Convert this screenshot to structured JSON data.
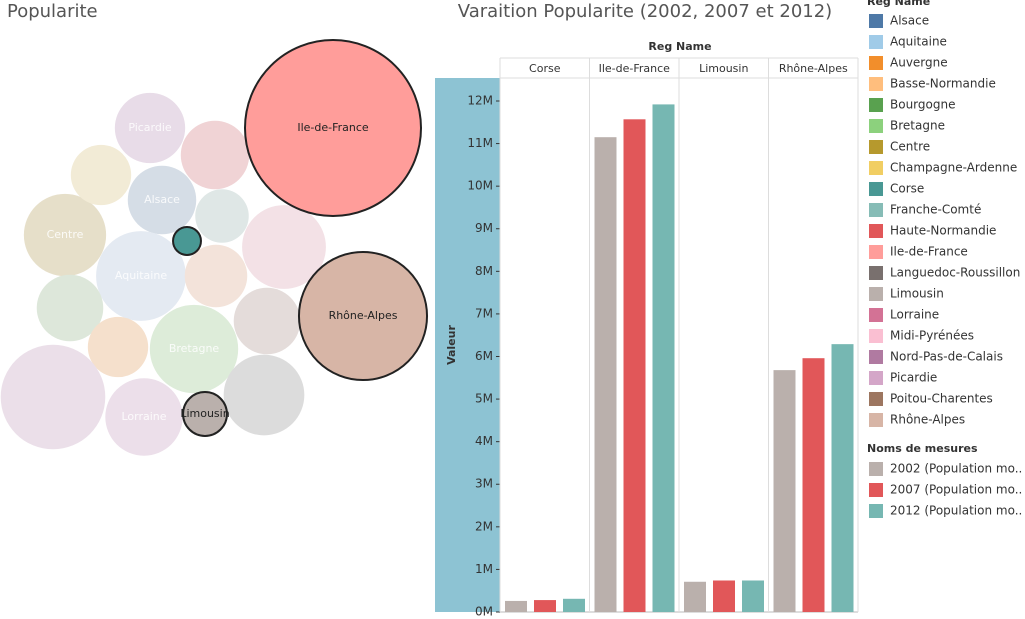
{
  "chart_data": [
    {
      "type": "packed_bubble",
      "title": "Popularite",
      "categories": [
        "Ile-de-France",
        "Rhône-Alpes",
        "Corse",
        "Limousin",
        "Picardie",
        "Alsace",
        "Centre",
        "Aquitaine",
        "Bretagne",
        "Lorraine",
        null,
        null,
        null,
        null,
        null,
        null,
        null,
        null,
        null,
        null
      ],
      "values": [
        11900000,
        6300000,
        300000,
        740000,
        1900000,
        1800000,
        2600000,
        3100000,
        3000000,
        2300000,
        1800000,
        1100000,
        1400000,
        2700000,
        1500000,
        1700000,
        1400000,
        1700000,
        2500000,
        4200000
      ],
      "colors": [
        "#ff9d9a",
        "#d7b5a6",
        "#499894",
        "#bab0ac",
        "#e8dce8",
        "#d5dde6",
        "#e6dfc9",
        "#e4eaf2",
        "#ddecd9",
        "#ecdfea",
        "#f0d3d5",
        "#dfe7e6",
        "#f2ebd6",
        "#f3e1e6",
        "#f3e3da",
        "#dde7da",
        "#f5e0cc",
        "#e4dcda",
        "#dcdcdc",
        "#ebdfe9"
      ],
      "highlighted": [
        true,
        true,
        true,
        true,
        false,
        false,
        false,
        false,
        false,
        false,
        false,
        false,
        false,
        false,
        false,
        false,
        false,
        false,
        false,
        false
      ],
      "legend": {
        "title": "Reg Name",
        "items": [
          {
            "name": "Alsace",
            "color": "#4e79a7"
          },
          {
            "name": "Aquitaine",
            "color": "#a0cbe8"
          },
          {
            "name": "Auvergne",
            "color": "#f28e2b"
          },
          {
            "name": "Basse-Normandie",
            "color": "#ffbe7d"
          },
          {
            "name": "Bourgogne",
            "color": "#59a14f"
          },
          {
            "name": "Bretagne",
            "color": "#8cd17d"
          },
          {
            "name": "Centre",
            "color": "#b6992d"
          },
          {
            "name": "Champagne-Ardenne",
            "color": "#f1ce63"
          },
          {
            "name": "Corse",
            "color": "#499894"
          },
          {
            "name": "Franche-Comté",
            "color": "#86bcb6"
          },
          {
            "name": "Haute-Normandie",
            "color": "#e15759"
          },
          {
            "name": "Ile-de-France",
            "color": "#ff9d9a"
          },
          {
            "name": "Languedoc-Roussillon",
            "color": "#79706e"
          },
          {
            "name": "Limousin",
            "color": "#bab0ac"
          },
          {
            "name": "Lorraine",
            "color": "#d37295"
          },
          {
            "name": "Midi-Pyrénées",
            "color": "#fabfd2"
          },
          {
            "name": "Nord-Pas-de-Calais",
            "color": "#b07aa1"
          },
          {
            "name": "Picardie",
            "color": "#d4a6c8"
          },
          {
            "name": "Poitou-Charentes",
            "color": "#9d7660"
          },
          {
            "name": "Rhône-Alpes",
            "color": "#d7b5a6"
          }
        ]
      }
    },
    {
      "type": "bar",
      "title": "Varaition Popularite (2002, 2007 et 2012)",
      "facet_label": "Reg Name",
      "ylabel": "Valeur",
      "categories": [
        "Corse",
        "Ile-de-France",
        "Limousin",
        "Rhône-Alpes"
      ],
      "legend_title": "Noms de mesures",
      "series": [
        {
          "name": "2002 (Population mo..",
          "color": "#bab0ac",
          "values": [
            260000,
            11150000,
            710000,
            5680000
          ]
        },
        {
          "name": "2007 (Population mo..",
          "color": "#e15759",
          "values": [
            280000,
            11570000,
            740000,
            5960000
          ]
        },
        {
          "name": "2012 (Population mo..",
          "color": "#76b7b2",
          "values": [
            310000,
            11920000,
            740000,
            6290000
          ]
        }
      ],
      "ylim": [
        0,
        12540000
      ],
      "yticks": [
        {
          "value": 0,
          "label": "0M"
        },
        {
          "value": 1000000,
          "label": "1M"
        },
        {
          "value": 2000000,
          "label": "2M"
        },
        {
          "value": 3000000,
          "label": "3M"
        },
        {
          "value": 4000000,
          "label": "4M"
        },
        {
          "value": 5000000,
          "label": "5M"
        },
        {
          "value": 6000000,
          "label": "6M"
        },
        {
          "value": 7000000,
          "label": "7M"
        },
        {
          "value": 8000000,
          "label": "8M"
        },
        {
          "value": 9000000,
          "label": "9M"
        },
        {
          "value": 10000000,
          "label": "10M"
        },
        {
          "value": 11000000,
          "label": "11M"
        },
        {
          "value": 12000000,
          "label": "12M"
        }
      ]
    }
  ]
}
